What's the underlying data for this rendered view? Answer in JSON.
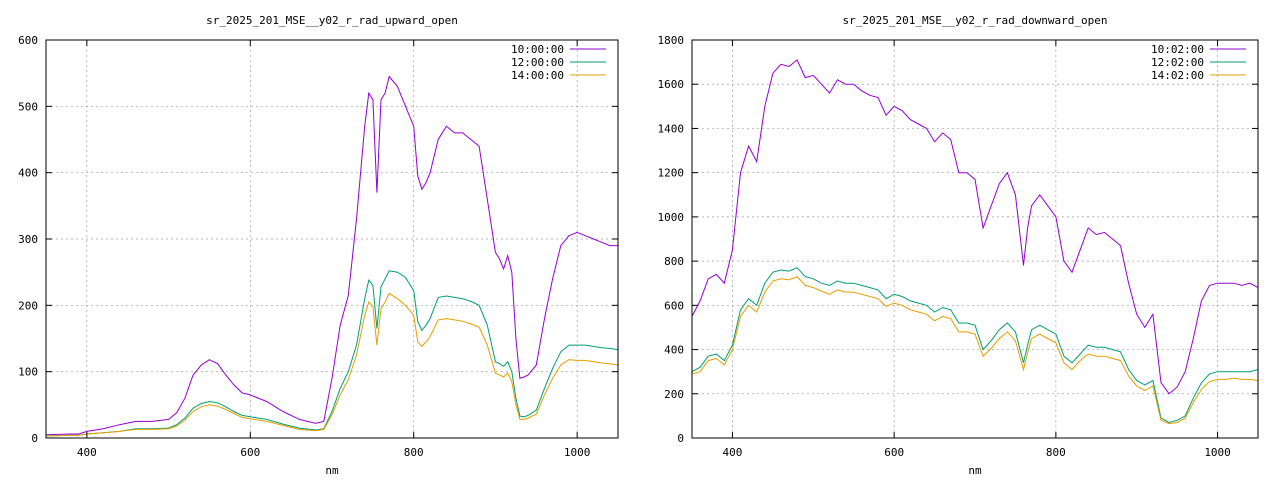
{
  "chart_data": [
    {
      "type": "line",
      "title": "sr_2025_201_MSE__y02_r_rad_upward_open",
      "xlabel": "nm",
      "ylabel": "",
      "xlim": [
        350,
        1050
      ],
      "ylim": [
        0,
        600
      ],
      "xticks": [
        400,
        600,
        800,
        1000
      ],
      "yticks": [
        0,
        100,
        200,
        300,
        400,
        500,
        600
      ],
      "grid": true,
      "legend": "top-right",
      "series": [
        {
          "name": "10:00:00",
          "color": "#9400d3",
          "x": [
            350,
            380,
            390,
            400,
            420,
            440,
            460,
            480,
            500,
            510,
            520,
            530,
            540,
            550,
            560,
            570,
            580,
            590,
            600,
            620,
            640,
            660,
            680,
            690,
            700,
            710,
            720,
            730,
            740,
            745,
            750,
            755,
            760,
            765,
            770,
            780,
            790,
            800,
            805,
            810,
            815,
            820,
            830,
            840,
            850,
            860,
            870,
            880,
            890,
            900,
            905,
            910,
            915,
            920,
            925,
            930,
            935,
            940,
            950,
            960,
            970,
            980,
            990,
            1000,
            1010,
            1020,
            1030,
            1040,
            1050
          ],
          "values": [
            5,
            6,
            6,
            10,
            14,
            20,
            25,
            25,
            28,
            38,
            60,
            95,
            110,
            118,
            112,
            95,
            80,
            68,
            65,
            55,
            40,
            28,
            22,
            25,
            90,
            170,
            215,
            330,
            470,
            520,
            510,
            370,
            510,
            520,
            545,
            530,
            500,
            470,
            395,
            375,
            385,
            400,
            450,
            470,
            460,
            460,
            450,
            440,
            360,
            280,
            270,
            255,
            275,
            250,
            150,
            90,
            92,
            95,
            110,
            180,
            240,
            290,
            305,
            310,
            305,
            300,
            295,
            290,
            290
          ]
        },
        {
          "name": "12:00:00",
          "color": "#009e73",
          "x": [
            350,
            380,
            390,
            400,
            420,
            440,
            460,
            480,
            500,
            510,
            520,
            530,
            540,
            550,
            560,
            570,
            580,
            590,
            600,
            620,
            640,
            660,
            680,
            690,
            700,
            710,
            720,
            730,
            740,
            745,
            750,
            755,
            760,
            765,
            770,
            780,
            790,
            800,
            805,
            810,
            815,
            820,
            830,
            840,
            850,
            860,
            870,
            880,
            890,
            900,
            905,
            910,
            915,
            920,
            925,
            930,
            935,
            940,
            950,
            960,
            970,
            980,
            990,
            1000,
            1010,
            1020,
            1030,
            1040,
            1050
          ],
          "values": [
            3,
            4,
            4,
            6,
            8,
            10,
            14,
            14,
            15,
            20,
            30,
            45,
            52,
            55,
            53,
            47,
            40,
            34,
            32,
            28,
            21,
            15,
            12,
            14,
            40,
            75,
            100,
            140,
            210,
            238,
            230,
            165,
            228,
            240,
            252,
            250,
            242,
            222,
            175,
            162,
            170,
            180,
            212,
            214,
            212,
            210,
            206,
            200,
            170,
            115,
            112,
            108,
            115,
            100,
            60,
            33,
            32,
            34,
            42,
            75,
            105,
            130,
            140,
            140,
            140,
            138,
            136,
            135,
            133
          ]
        },
        {
          "name": "14:00:00",
          "color": "#e69f00",
          "x": [
            350,
            380,
            390,
            400,
            420,
            440,
            460,
            480,
            500,
            510,
            520,
            530,
            540,
            550,
            560,
            570,
            580,
            590,
            600,
            620,
            640,
            660,
            680,
            690,
            700,
            710,
            720,
            730,
            740,
            745,
            750,
            755,
            760,
            765,
            770,
            780,
            790,
            800,
            805,
            810,
            815,
            820,
            830,
            840,
            850,
            860,
            870,
            880,
            890,
            900,
            905,
            910,
            915,
            920,
            925,
            930,
            935,
            940,
            950,
            960,
            970,
            980,
            990,
            1000,
            1010,
            1020,
            1030,
            1040,
            1050
          ],
          "values": [
            3,
            4,
            4,
            6,
            8,
            10,
            13,
            13,
            14,
            18,
            27,
            40,
            47,
            50,
            48,
            43,
            37,
            31,
            29,
            25,
            19,
            13,
            11,
            13,
            35,
            65,
            88,
            125,
            185,
            205,
            198,
            140,
            195,
            205,
            218,
            210,
            200,
            185,
            145,
            138,
            145,
            153,
            178,
            180,
            178,
            176,
            172,
            167,
            140,
            98,
            95,
            92,
            98,
            85,
            50,
            28,
            28,
            30,
            36,
            65,
            90,
            110,
            118,
            117,
            117,
            115,
            113,
            112,
            110
          ]
        }
      ]
    },
    {
      "type": "line",
      "title": "sr_2025_201_MSE__y02_r_rad_downward_open",
      "xlabel": "nm",
      "ylabel": "",
      "xlim": [
        350,
        1050
      ],
      "ylim": [
        0,
        1800
      ],
      "xticks": [
        400,
        600,
        800,
        1000
      ],
      "yticks": [
        0,
        200,
        400,
        600,
        800,
        1000,
        1200,
        1400,
        1600,
        1800
      ],
      "grid": true,
      "legend": "top-right",
      "series": [
        {
          "name": "10:02:00",
          "color": "#9400d3",
          "x": [
            350,
            360,
            370,
            380,
            390,
            400,
            410,
            420,
            430,
            440,
            450,
            460,
            470,
            480,
            490,
            500,
            510,
            520,
            530,
            540,
            550,
            560,
            570,
            580,
            590,
            600,
            610,
            620,
            630,
            640,
            650,
            660,
            670,
            680,
            690,
            700,
            710,
            720,
            730,
            740,
            750,
            760,
            765,
            770,
            780,
            790,
            800,
            810,
            820,
            830,
            840,
            850,
            860,
            870,
            880,
            890,
            900,
            910,
            920,
            930,
            940,
            950,
            960,
            970,
            980,
            990,
            1000,
            1010,
            1020,
            1030,
            1040,
            1050
          ],
          "values": [
            550,
            620,
            720,
            740,
            700,
            850,
            1200,
            1320,
            1250,
            1500,
            1650,
            1690,
            1680,
            1710,
            1630,
            1640,
            1600,
            1560,
            1620,
            1600,
            1600,
            1570,
            1550,
            1540,
            1460,
            1500,
            1480,
            1440,
            1420,
            1400,
            1340,
            1380,
            1350,
            1200,
            1200,
            1170,
            950,
            1050,
            1150,
            1200,
            1100,
            780,
            950,
            1050,
            1100,
            1050,
            1000,
            800,
            750,
            850,
            950,
            920,
            930,
            900,
            870,
            700,
            560,
            500,
            560,
            250,
            200,
            230,
            300,
            450,
            620,
            690,
            700,
            700,
            700,
            690,
            700,
            680
          ]
        },
        {
          "name": "12:02:00",
          "color": "#009e73",
          "x": [
            350,
            360,
            370,
            380,
            390,
            400,
            410,
            420,
            430,
            440,
            450,
            460,
            470,
            480,
            490,
            500,
            510,
            520,
            530,
            540,
            550,
            560,
            570,
            580,
            590,
            600,
            610,
            620,
            630,
            640,
            650,
            660,
            670,
            680,
            690,
            700,
            710,
            720,
            730,
            740,
            750,
            760,
            765,
            770,
            780,
            790,
            800,
            810,
            820,
            830,
            840,
            850,
            860,
            870,
            880,
            890,
            900,
            910,
            920,
            930,
            940,
            950,
            960,
            970,
            980,
            990,
            1000,
            1010,
            1020,
            1030,
            1040,
            1050
          ],
          "values": [
            300,
            320,
            370,
            380,
            350,
            420,
            580,
            630,
            600,
            700,
            750,
            760,
            755,
            770,
            730,
            720,
            700,
            690,
            710,
            700,
            700,
            690,
            680,
            670,
            630,
            650,
            640,
            620,
            610,
            600,
            570,
            590,
            580,
            520,
            520,
            510,
            400,
            440,
            490,
            520,
            480,
            340,
            420,
            490,
            510,
            490,
            470,
            370,
            340,
            380,
            420,
            410,
            410,
            400,
            390,
            310,
            260,
            240,
            260,
            90,
            70,
            80,
            100,
            180,
            250,
            290,
            300,
            300,
            300,
            300,
            300,
            310
          ]
        },
        {
          "name": "14:02:00",
          "color": "#e69f00",
          "x": [
            350,
            360,
            370,
            380,
            390,
            400,
            410,
            420,
            430,
            440,
            450,
            460,
            470,
            480,
            490,
            500,
            510,
            520,
            530,
            540,
            550,
            560,
            570,
            580,
            590,
            600,
            610,
            620,
            630,
            640,
            650,
            660,
            670,
            680,
            690,
            700,
            710,
            720,
            730,
            740,
            750,
            760,
            765,
            770,
            780,
            790,
            800,
            810,
            820,
            830,
            840,
            850,
            860,
            870,
            880,
            890,
            900,
            910,
            920,
            930,
            940,
            950,
            960,
            970,
            980,
            990,
            1000,
            1010,
            1020,
            1030,
            1040,
            1050
          ],
          "values": [
            290,
            300,
            350,
            360,
            330,
            400,
            550,
            600,
            570,
            660,
            710,
            720,
            715,
            730,
            690,
            680,
            665,
            650,
            670,
            660,
            660,
            650,
            640,
            630,
            595,
            610,
            600,
            580,
            570,
            560,
            530,
            550,
            540,
            480,
            480,
            470,
            370,
            405,
            450,
            480,
            440,
            310,
            385,
            450,
            470,
            450,
            430,
            340,
            310,
            350,
            380,
            370,
            370,
            360,
            350,
            280,
            235,
            215,
            235,
            80,
            65,
            70,
            90,
            160,
            220,
            255,
            265,
            265,
            270,
            265,
            265,
            260
          ]
        }
      ]
    }
  ]
}
